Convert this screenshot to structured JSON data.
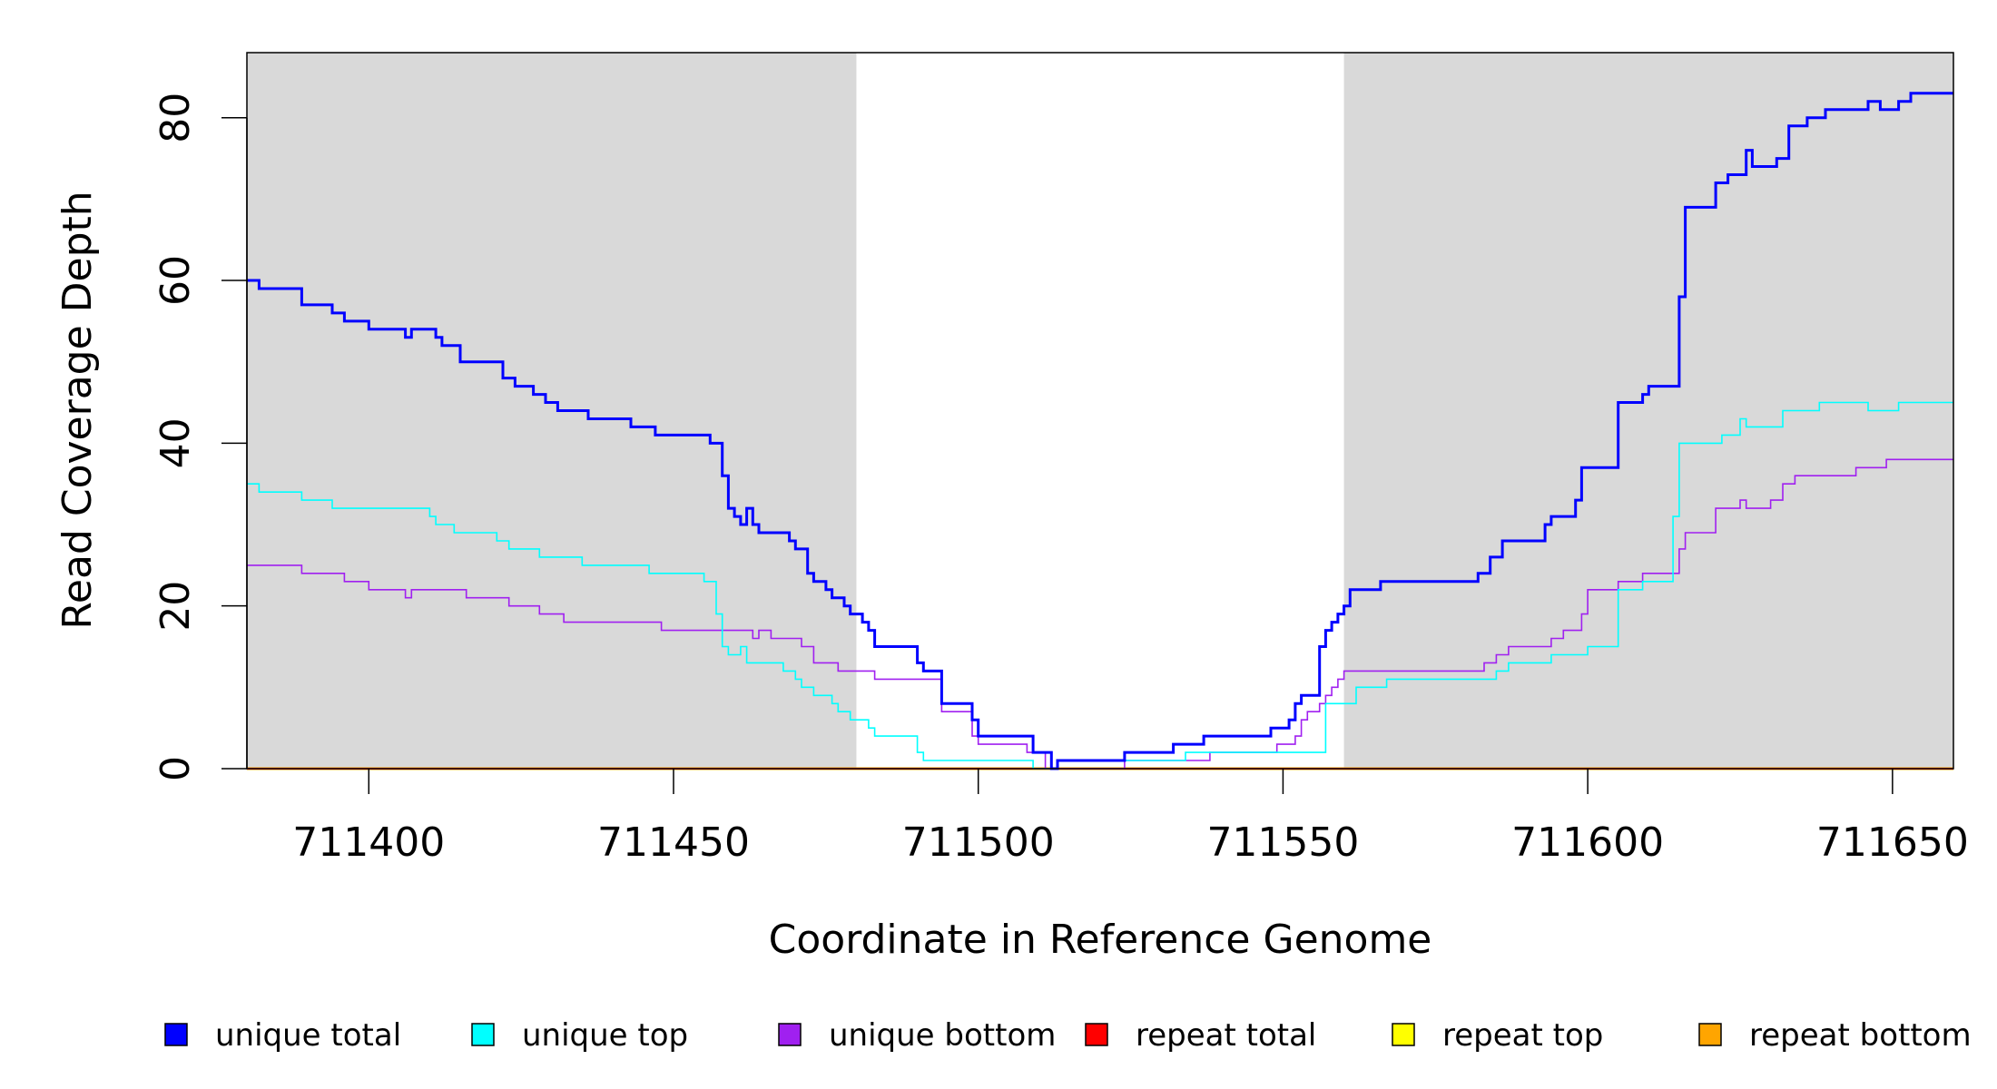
{
  "chart_data": {
    "type": "line",
    "step": true,
    "title": "",
    "xlabel": "Coordinate in Reference Genome",
    "ylabel": "Read Coverage Depth",
    "xlim": [
      711380,
      711660
    ],
    "ylim": [
      0,
      88
    ],
    "xticks": [
      711400,
      711450,
      711500,
      711550,
      711600,
      711650
    ],
    "xtick_labels": [
      "711400",
      "711450",
      "711500",
      "711550",
      "711600",
      "711650"
    ],
    "yticks": [
      0,
      20,
      40,
      60,
      80
    ],
    "ytick_labels": [
      "0",
      "20",
      "40",
      "60",
      "80"
    ],
    "shaded_regions": [
      {
        "x0": 711380,
        "x1": 711480,
        "color": "#d9d9d9"
      },
      {
        "x0": 711560,
        "x1": 711660,
        "color": "#d9d9d9"
      }
    ],
    "legend": {
      "placement": "bottom",
      "entries": [
        {
          "label": "unique total",
          "color": "#0000ff"
        },
        {
          "label": "unique top",
          "color": "#00ffff"
        },
        {
          "label": "unique bottom",
          "color": "#a020f0"
        },
        {
          "label": "repeat total",
          "color": "#ff0000"
        },
        {
          "label": "repeat top",
          "color": "#ffff00"
        },
        {
          "label": "repeat bottom",
          "color": "#ffa500"
        }
      ]
    },
    "series": [
      {
        "name": "unique total",
        "color": "#0000ff",
        "width": 3,
        "points": [
          [
            711380,
            60
          ],
          [
            711382,
            59
          ],
          [
            711389,
            57
          ],
          [
            711394,
            56
          ],
          [
            711396,
            55
          ],
          [
            711400,
            54
          ],
          [
            711406,
            53
          ],
          [
            711407,
            54
          ],
          [
            711411,
            53
          ],
          [
            711412,
            52
          ],
          [
            711415,
            50
          ],
          [
            711422,
            48
          ],
          [
            711424,
            47
          ],
          [
            711427,
            46
          ],
          [
            711429,
            45
          ],
          [
            711431,
            44
          ],
          [
            711436,
            43
          ],
          [
            711443,
            42
          ],
          [
            711447,
            41
          ],
          [
            711456,
            40
          ],
          [
            711458,
            36
          ],
          [
            711459,
            32
          ],
          [
            711460,
            31
          ],
          [
            711461,
            30
          ],
          [
            711462,
            32
          ],
          [
            711463,
            30
          ],
          [
            711464,
            29
          ],
          [
            711469,
            28
          ],
          [
            711470,
            27
          ],
          [
            711472,
            24
          ],
          [
            711473,
            23
          ],
          [
            711475,
            22
          ],
          [
            711476,
            21
          ],
          [
            711478,
            20
          ],
          [
            711479,
            19
          ],
          [
            711481,
            18
          ],
          [
            711482,
            17
          ],
          [
            711483,
            15
          ],
          [
            711490,
            13
          ],
          [
            711491,
            12
          ],
          [
            711494,
            8
          ],
          [
            711499,
            6
          ],
          [
            711500,
            4
          ],
          [
            711509,
            2
          ],
          [
            711512,
            0
          ],
          [
            711513,
            1
          ],
          [
            711524,
            2
          ],
          [
            711532,
            3
          ],
          [
            711537,
            4
          ],
          [
            711548,
            5
          ],
          [
            711551,
            6
          ],
          [
            711552,
            8
          ],
          [
            711553,
            9
          ],
          [
            711556,
            15
          ],
          [
            711557,
            17
          ],
          [
            711558,
            18
          ],
          [
            711559,
            19
          ],
          [
            711560,
            20
          ],
          [
            711561,
            22
          ],
          [
            711566,
            23
          ],
          [
            711582,
            24
          ],
          [
            711584,
            26
          ],
          [
            711586,
            28
          ],
          [
            711593,
            30
          ],
          [
            711594,
            31
          ],
          [
            711598,
            33
          ],
          [
            711599,
            37
          ],
          [
            711605,
            45
          ],
          [
            711609,
            46
          ],
          [
            711610,
            47
          ],
          [
            711615,
            58
          ],
          [
            711616,
            69
          ],
          [
            711621,
            72
          ],
          [
            711623,
            73
          ],
          [
            711626,
            76
          ],
          [
            711627,
            74
          ],
          [
            711631,
            75
          ],
          [
            711633,
            79
          ],
          [
            711636,
            80
          ],
          [
            711639,
            81
          ],
          [
            711646,
            82
          ],
          [
            711648,
            81
          ],
          [
            711651,
            82
          ],
          [
            711653,
            83
          ],
          [
            711660,
            83
          ]
        ]
      },
      {
        "name": "unique top",
        "color": "#00ffff",
        "width": 1.6,
        "points": [
          [
            711380,
            35
          ],
          [
            711382,
            34
          ],
          [
            711389,
            33
          ],
          [
            711394,
            32
          ],
          [
            711410,
            31
          ],
          [
            711411,
            30
          ],
          [
            711414,
            29
          ],
          [
            711421,
            28
          ],
          [
            711423,
            27
          ],
          [
            711428,
            26
          ],
          [
            711435,
            25
          ],
          [
            711446,
            24
          ],
          [
            711455,
            23
          ],
          [
            711457,
            19
          ],
          [
            711458,
            15
          ],
          [
            711459,
            14
          ],
          [
            711461,
            15
          ],
          [
            711462,
            13
          ],
          [
            711468,
            12
          ],
          [
            711470,
            11
          ],
          [
            711471,
            10
          ],
          [
            711473,
            9
          ],
          [
            711476,
            8
          ],
          [
            711477,
            7
          ],
          [
            711479,
            6
          ],
          [
            711482,
            5
          ],
          [
            711483,
            4
          ],
          [
            711490,
            2
          ],
          [
            711491,
            1
          ],
          [
            711509,
            0
          ],
          [
            711513,
            1
          ],
          [
            711534,
            2
          ],
          [
            711557,
            8
          ],
          [
            711560,
            8
          ],
          [
            711562,
            10
          ],
          [
            711567,
            11
          ],
          [
            711585,
            12
          ],
          [
            711587,
            13
          ],
          [
            711594,
            14
          ],
          [
            711600,
            15
          ],
          [
            711605,
            22
          ],
          [
            711609,
            23
          ],
          [
            711614,
            31
          ],
          [
            711615,
            40
          ],
          [
            711622,
            41
          ],
          [
            711625,
            43
          ],
          [
            711626,
            42
          ],
          [
            711632,
            44
          ],
          [
            711638,
            45
          ],
          [
            711646,
            44
          ],
          [
            711651,
            45
          ],
          [
            711660,
            45
          ]
        ]
      },
      {
        "name": "unique bottom",
        "color": "#a020f0",
        "width": 1.6,
        "points": [
          [
            711380,
            25
          ],
          [
            711389,
            24
          ],
          [
            711396,
            23
          ],
          [
            711400,
            22
          ],
          [
            711406,
            21
          ],
          [
            711407,
            22
          ],
          [
            711416,
            21
          ],
          [
            711423,
            20
          ],
          [
            711428,
            19
          ],
          [
            711432,
            18
          ],
          [
            711448,
            17
          ],
          [
            711463,
            16
          ],
          [
            711464,
            17
          ],
          [
            711466,
            16
          ],
          [
            711471,
            15
          ],
          [
            711473,
            13
          ],
          [
            711477,
            12
          ],
          [
            711483,
            11
          ],
          [
            711494,
            7
          ],
          [
            711499,
            4
          ],
          [
            711500,
            3
          ],
          [
            711508,
            2
          ],
          [
            711511,
            0
          ],
          [
            711524,
            1
          ],
          [
            711538,
            2
          ],
          [
            711549,
            3
          ],
          [
            711552,
            4
          ],
          [
            711553,
            6
          ],
          [
            711554,
            7
          ],
          [
            711556,
            8
          ],
          [
            711557,
            9
          ],
          [
            711558,
            10
          ],
          [
            711559,
            11
          ],
          [
            711560,
            12
          ],
          [
            711583,
            13
          ],
          [
            711585,
            14
          ],
          [
            711587,
            15
          ],
          [
            711594,
            16
          ],
          [
            711596,
            17
          ],
          [
            711599,
            19
          ],
          [
            711600,
            22
          ],
          [
            711605,
            23
          ],
          [
            711609,
            24
          ],
          [
            711615,
            27
          ],
          [
            711616,
            29
          ],
          [
            711621,
            32
          ],
          [
            711625,
            33
          ],
          [
            711626,
            32
          ],
          [
            711630,
            33
          ],
          [
            711632,
            35
          ],
          [
            711634,
            36
          ],
          [
            711644,
            37
          ],
          [
            711649,
            38
          ],
          [
            711660,
            38
          ]
        ]
      },
      {
        "name": "repeat total",
        "color": "#ff0000",
        "width": 2,
        "points": [
          [
            711380,
            0
          ],
          [
            711660,
            0
          ]
        ]
      },
      {
        "name": "repeat top",
        "color": "#ffff00",
        "width": 2,
        "points": [
          [
            711380,
            0
          ],
          [
            711660,
            0
          ]
        ]
      },
      {
        "name": "repeat bottom",
        "color": "#ffa500",
        "width": 3,
        "points": [
          [
            711380,
            0
          ],
          [
            711660,
            0
          ]
        ]
      }
    ]
  }
}
